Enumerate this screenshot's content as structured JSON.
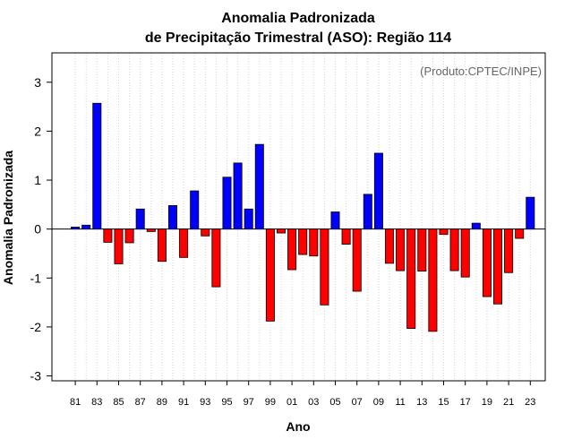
{
  "chart_data": {
    "type": "bar",
    "title": "Anomalia Padronizada",
    "subtitle": "de Precipitação Trimestral (ASO): Região 114",
    "xlabel": "Ano",
    "ylabel": "Anomalia Padronizada",
    "source": "(Produto:CPTEC/INPE)",
    "ylim": [
      -3.1,
      3.6
    ],
    "yticks": [
      -3,
      -2,
      -1,
      0,
      1,
      2,
      3
    ],
    "grid": true,
    "categories": [
      "81",
      "82",
      "83",
      "84",
      "85",
      "86",
      "87",
      "88",
      "89",
      "90",
      "91",
      "92",
      "93",
      "94",
      "95",
      "96",
      "97",
      "98",
      "99",
      "00",
      "01",
      "02",
      "03",
      "04",
      "05",
      "06",
      "07",
      "08",
      "09",
      "10",
      "11",
      "12",
      "13",
      "14",
      "15",
      "16",
      "17",
      "18",
      "19",
      "20",
      "21",
      "22",
      "23"
    ],
    "xtick_labels": [
      "81",
      "83",
      "85",
      "87",
      "89",
      "91",
      "93",
      "95",
      "97",
      "99",
      "01",
      "03",
      "05",
      "07",
      "09",
      "11",
      "13",
      "15",
      "17",
      "19",
      "21",
      "23"
    ],
    "values": [
      0.04,
      0.08,
      2.57,
      -0.27,
      -0.71,
      -0.28,
      0.41,
      -0.05,
      -0.66,
      0.48,
      -0.58,
      0.78,
      -0.14,
      -1.18,
      1.06,
      1.35,
      0.41,
      1.73,
      -1.88,
      -0.08,
      -0.83,
      -0.52,
      -0.55,
      -1.55,
      0.35,
      -0.31,
      -1.27,
      0.71,
      1.55,
      -0.7,
      -0.85,
      -2.03,
      -0.86,
      -2.09,
      -0.11,
      -0.85,
      -0.98,
      0.12,
      -1.38,
      -1.53,
      -0.89,
      -0.19,
      0.65
    ],
    "positive_color": "#0000ff",
    "negative_color": "#ff0000"
  }
}
